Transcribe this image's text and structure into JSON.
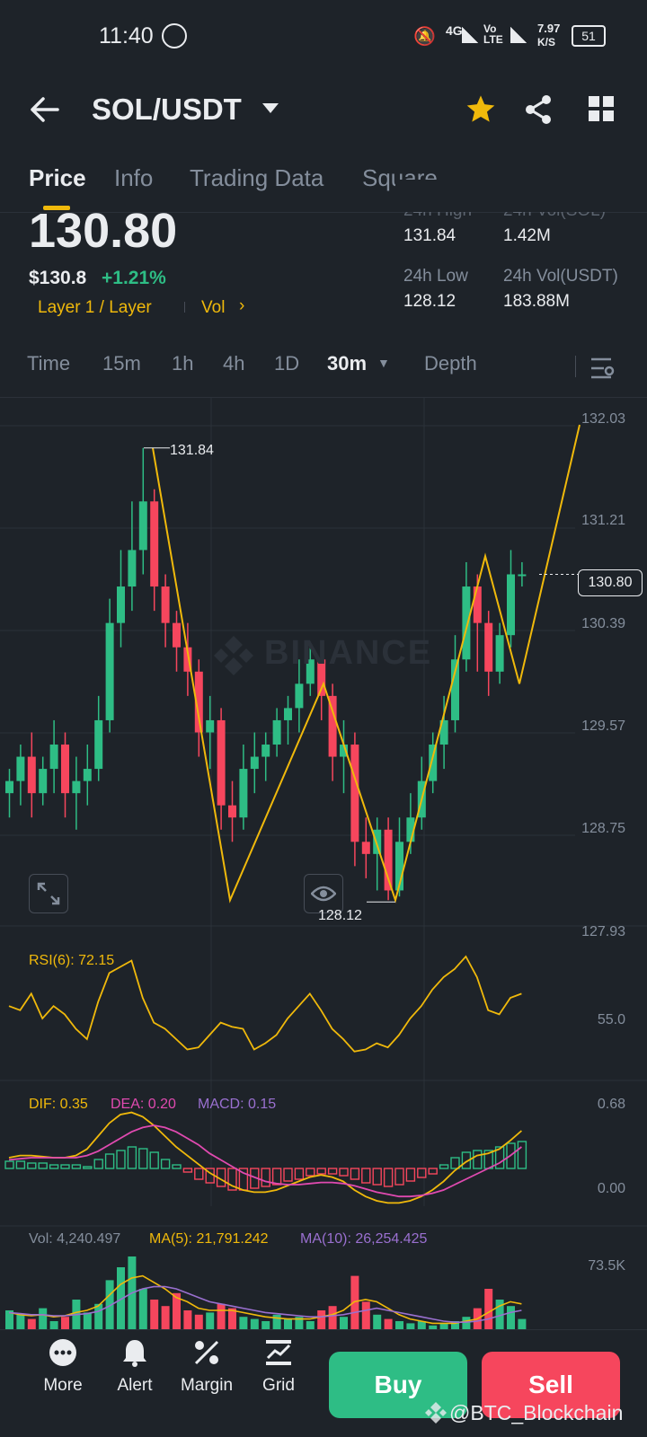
{
  "status_bar": {
    "time": "11:40",
    "network": "4G",
    "volte": "Vo LTE",
    "speed": "7.97",
    "speed_unit": "K/S",
    "battery": "51"
  },
  "header": {
    "pair": "SOL/USDT",
    "icons": [
      "back-arrow-icon",
      "dropdown-icon",
      "star-icon",
      "share-icon",
      "grid-icon"
    ]
  },
  "tabs": [
    "Price",
    "Info",
    "Trading Data",
    "Square"
  ],
  "price": {
    "last": "130.80",
    "usd": "$130.8",
    "change": "+1.21%",
    "tag": "Layer 1 / Layer",
    "vol_link": "Vol"
  },
  "stats": {
    "high_label": "24h High",
    "high": "131.84",
    "vol_sol_label": "24h Vol(SOL)",
    "vol_sol": "1.42M",
    "low_label": "24h Low",
    "low": "128.12",
    "vol_usdt_label": "24h Vol(USDT)",
    "vol_usdt": "183.88M"
  },
  "timeframes": [
    "Time",
    "15m",
    "1h",
    "4h",
    "1D",
    "30m",
    "Depth"
  ],
  "selected_timeframe": "30m",
  "chart": {
    "watermark": "BINANCE",
    "price_axis": [
      "132.03",
      "131.21",
      "130.39",
      "129.57",
      "128.75",
      "127.93"
    ],
    "current_tag": "130.80",
    "high_marker": "131.84",
    "low_marker": "128.12",
    "rsi_label": "RSI(6): 72.15",
    "rsi_axis": "55.0",
    "dif": "DIF: 0.35",
    "dea": "DEA: 0.20",
    "macd": "MACD: 0.15",
    "macd_axis_top": "0.68",
    "macd_axis_zero": "0.00",
    "vol": "Vol: 4,240.497",
    "ma5": "MA(5): 21,791.242",
    "ma10": "MA(10): 26,254.425",
    "vol_axis": "73.5K"
  },
  "chart_data": {
    "type": "candlestick",
    "ylim": [
      127.93,
      132.03
    ],
    "candles": [
      [
        129.0,
        129.1,
        128.8,
        129.2
      ],
      [
        129.1,
        129.3,
        128.9,
        129.4
      ],
      [
        129.3,
        129.0,
        128.8,
        129.5
      ],
      [
        129.0,
        129.2,
        128.9,
        129.3
      ],
      [
        129.2,
        129.4,
        129.0,
        129.6
      ],
      [
        129.4,
        129.0,
        128.8,
        129.5
      ],
      [
        129.0,
        129.1,
        128.7,
        129.3
      ],
      [
        129.1,
        129.2,
        128.9,
        129.4
      ],
      [
        129.2,
        129.6,
        129.1,
        129.8
      ],
      [
        129.6,
        130.4,
        129.5,
        130.6
      ],
      [
        130.4,
        130.7,
        130.2,
        131.0
      ],
      [
        130.7,
        131.0,
        130.5,
        131.4
      ],
      [
        131.0,
        131.4,
        130.8,
        131.84
      ],
      [
        131.4,
        130.7,
        130.5,
        131.5
      ],
      [
        130.7,
        130.4,
        130.2,
        130.8
      ],
      [
        130.4,
        130.2,
        130.0,
        130.5
      ],
      [
        130.2,
        130.0,
        129.8,
        130.4
      ],
      [
        130.0,
        129.5,
        129.3,
        130.1
      ],
      [
        129.5,
        129.6,
        129.2,
        129.8
      ],
      [
        129.6,
        128.9,
        128.7,
        129.7
      ],
      [
        128.9,
        128.8,
        128.6,
        129.1
      ],
      [
        128.8,
        129.2,
        128.7,
        129.4
      ],
      [
        129.2,
        129.3,
        129.0,
        129.5
      ],
      [
        129.3,
        129.4,
        129.1,
        129.5
      ],
      [
        129.4,
        129.6,
        129.3,
        129.7
      ],
      [
        129.6,
        129.7,
        129.4,
        129.8
      ],
      [
        129.7,
        129.9,
        129.5,
        130.1
      ],
      [
        129.9,
        130.1,
        129.8,
        130.2
      ],
      [
        130.1,
        129.8,
        129.6,
        130.2
      ],
      [
        129.8,
        129.3,
        129.1,
        129.9
      ],
      [
        129.3,
        129.4,
        129.0,
        129.6
      ],
      [
        129.4,
        128.6,
        128.4,
        129.5
      ],
      [
        128.6,
        128.5,
        128.3,
        128.8
      ],
      [
        128.5,
        128.7,
        128.2,
        128.8
      ],
      [
        128.7,
        128.2,
        128.12,
        128.8
      ],
      [
        128.2,
        128.6,
        128.15,
        128.8
      ],
      [
        128.6,
        128.8,
        128.5,
        129.0
      ],
      [
        128.8,
        129.1,
        128.7,
        129.3
      ],
      [
        129.1,
        129.4,
        129.0,
        129.5
      ],
      [
        129.4,
        129.6,
        129.2,
        129.8
      ],
      [
        129.6,
        130.1,
        129.5,
        130.3
      ],
      [
        130.1,
        130.7,
        130.0,
        130.9
      ],
      [
        130.7,
        130.4,
        130.0,
        130.8
      ],
      [
        130.4,
        130.0,
        129.8,
        130.5
      ],
      [
        130.0,
        130.3,
        129.9,
        130.4
      ],
      [
        130.3,
        130.8,
        130.2,
        131.0
      ],
      [
        130.8,
        130.8,
        130.7,
        130.9
      ]
    ],
    "zigzag": [
      131.84,
      128.12,
      129.9,
      128.12,
      130.95,
      129.9,
      132.03
    ]
  },
  "bottom_nav": [
    "More",
    "Alert",
    "Margin",
    "Grid"
  ],
  "actions": {
    "buy": "Buy",
    "sell": "Sell"
  },
  "watermark_user": "BTC_Blockchain",
  "colors": {
    "up": "#2ebd85",
    "down": "#f6465d",
    "accent": "#f0b90b",
    "bg": "#1e2329",
    "muted": "#848e9c"
  }
}
